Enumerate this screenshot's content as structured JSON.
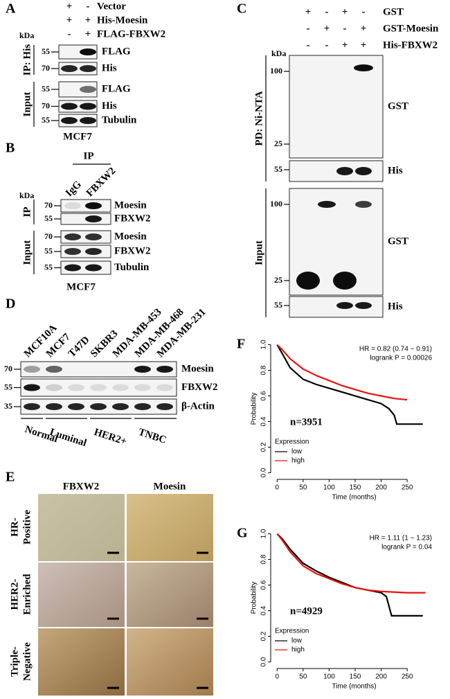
{
  "panels": {
    "A": {
      "letter": "A",
      "conditions": [
        {
          "name": "Vector",
          "signs": [
            "+",
            "-"
          ]
        },
        {
          "name": "His-Moesin",
          "signs": [
            "+",
            "+"
          ]
        },
        {
          "name": "FLAG-FBXW2",
          "signs": [
            "-",
            "+"
          ]
        }
      ],
      "unit": "kDa",
      "groups": [
        {
          "name": "IP: His",
          "rows": [
            {
              "marker": "55",
              "label": "FLAG"
            },
            {
              "marker": "70",
              "label": "His"
            }
          ]
        },
        {
          "name": "Input",
          "rows": [
            {
              "marker": "55",
              "label": "FLAG"
            },
            {
              "marker": "70",
              "label": "His"
            },
            {
              "marker": "55",
              "label": "Tubulin"
            }
          ]
        }
      ],
      "cell_line": "MCF7"
    },
    "B": {
      "letter": "B",
      "header": "IP",
      "lanes": [
        "IgG",
        "FBXW2"
      ],
      "unit": "kDa",
      "groups": [
        {
          "name": "IP",
          "rows": [
            {
              "marker": "70",
              "label": "Moesin"
            },
            {
              "marker": "55",
              "label": "FBXW2"
            }
          ]
        },
        {
          "name": "Input",
          "rows": [
            {
              "marker": "70",
              "label": "Moesin"
            },
            {
              "marker": "55",
              "label": "FBXW2"
            },
            {
              "marker": "55",
              "label": "Tubulin"
            }
          ]
        }
      ],
      "cell_line": "MCF7"
    },
    "C": {
      "letter": "C",
      "conditions": [
        {
          "name": "GST",
          "signs": [
            "+",
            "-",
            "+",
            "-"
          ]
        },
        {
          "name": "GST-Moesin",
          "signs": [
            "-",
            "+",
            "-",
            "+"
          ]
        },
        {
          "name": "His-FBXW2",
          "signs": [
            "-",
            "-",
            "+",
            "+"
          ]
        }
      ],
      "unit": "kDa",
      "groups": [
        {
          "name": "PD: Ni-NTA",
          "rows": [
            {
              "markers": [
                "100",
                "25"
              ],
              "label": "GST"
            },
            {
              "markers": [
                "55"
              ],
              "label": "His"
            }
          ]
        },
        {
          "name": "Input",
          "rows": [
            {
              "markers": [
                "100",
                "25"
              ],
              "label": "GST"
            },
            {
              "markers": [
                "55"
              ],
              "label": "His"
            }
          ]
        }
      ]
    },
    "D": {
      "letter": "D",
      "lanes": [
        "MCF10A",
        "MCF7",
        "T47D",
        "SKBR3",
        "MDA-MB-453",
        "MDA-MB-468",
        "MDA-MB-231"
      ],
      "rows": [
        {
          "marker": "70",
          "label": "Moesin"
        },
        {
          "marker": "55",
          "label": "FBXW2"
        },
        {
          "marker": "35",
          "label": "β-Actin"
        }
      ],
      "groups": [
        "Normal",
        "Luminal",
        "HER2+",
        "TNBC"
      ]
    },
    "E": {
      "letter": "E",
      "columns": [
        "FBXW2",
        "Moesin"
      ],
      "rows": [
        [
          "HR-",
          "Positive"
        ],
        [
          "HER2-",
          "Enriched"
        ],
        [
          "Triple-",
          "Negative"
        ]
      ]
    }
  },
  "chart_data": [
    {
      "type": "line",
      "panel": "F",
      "annotations": [
        "HR = 0.82 (0.74 − 0.91)",
        "logrank P = 0.00026",
        "n=3951"
      ],
      "x_label": "Time (months)",
      "y_label": "Probability",
      "legend_title": "Expression",
      "xlim": [
        -7,
        303
      ],
      "ylim": [
        -0.03,
        1.03
      ],
      "xticks": [
        0,
        50,
        100,
        150,
        200,
        250
      ],
      "yticks": [
        {
          "value": 0,
          "label": "0.0"
        },
        {
          "value": 0.2,
          "label": "0.2"
        },
        {
          "value": 0.4,
          "label": "0.4"
        },
        {
          "value": 0.6,
          "label": "0.6"
        },
        {
          "value": 0.8,
          "label": "0.8"
        },
        {
          "value": 1,
          "label": "1.0"
        }
      ],
      "series": [
        {
          "name": "low",
          "color": "#000000",
          "x": [
            0,
            10,
            25,
            50,
            75,
            100,
            125,
            150,
            175,
            200,
            215,
            225,
            230,
            280
          ],
          "values": [
            1,
            0.93,
            0.82,
            0.73,
            0.69,
            0.66,
            0.63,
            0.6,
            0.57,
            0.54,
            0.5,
            0.45,
            0.38,
            0.38
          ]
        },
        {
          "name": "high",
          "color": "#e8110f",
          "x": [
            0,
            10,
            25,
            50,
            75,
            100,
            125,
            150,
            175,
            200,
            225,
            250
          ],
          "values": [
            1,
            0.96,
            0.89,
            0.81,
            0.76,
            0.72,
            0.68,
            0.65,
            0.62,
            0.6,
            0.58,
            0.57
          ]
        }
      ]
    },
    {
      "type": "line",
      "panel": "G",
      "annotations": [
        "HR = 1.11 (1 − 1.23)",
        "logrank P = 0.04",
        "n=4929"
      ],
      "x_label": "Time (months)",
      "y_label": "Probability",
      "legend_title": "Expression",
      "xlim": [
        -7,
        303
      ],
      "ylim": [
        -0.03,
        1.03
      ],
      "xticks": [
        0,
        50,
        100,
        150,
        200,
        250
      ],
      "yticks": [
        {
          "value": 0,
          "label": "0.0"
        },
        {
          "value": 0.2,
          "label": "0.2"
        },
        {
          "value": 0.4,
          "label": "0.4"
        },
        {
          "value": 0.6,
          "label": "0.6"
        },
        {
          "value": 0.8,
          "label": "0.8"
        },
        {
          "value": 1,
          "label": "1.0"
        }
      ],
      "series": [
        {
          "name": "low",
          "color": "#000000",
          "x": [
            0,
            10,
            25,
            50,
            75,
            100,
            125,
            150,
            175,
            200,
            210,
            220,
            280
          ],
          "values": [
            1,
            0.96,
            0.88,
            0.77,
            0.71,
            0.66,
            0.62,
            0.58,
            0.56,
            0.54,
            0.51,
            0.36,
            0.36
          ]
        },
        {
          "name": "high",
          "color": "#e8110f",
          "x": [
            0,
            10,
            25,
            50,
            75,
            100,
            125,
            150,
            175,
            200,
            250,
            285
          ],
          "values": [
            1,
            0.95,
            0.86,
            0.75,
            0.69,
            0.65,
            0.61,
            0.58,
            0.56,
            0.55,
            0.54,
            0.54
          ]
        }
      ]
    }
  ]
}
